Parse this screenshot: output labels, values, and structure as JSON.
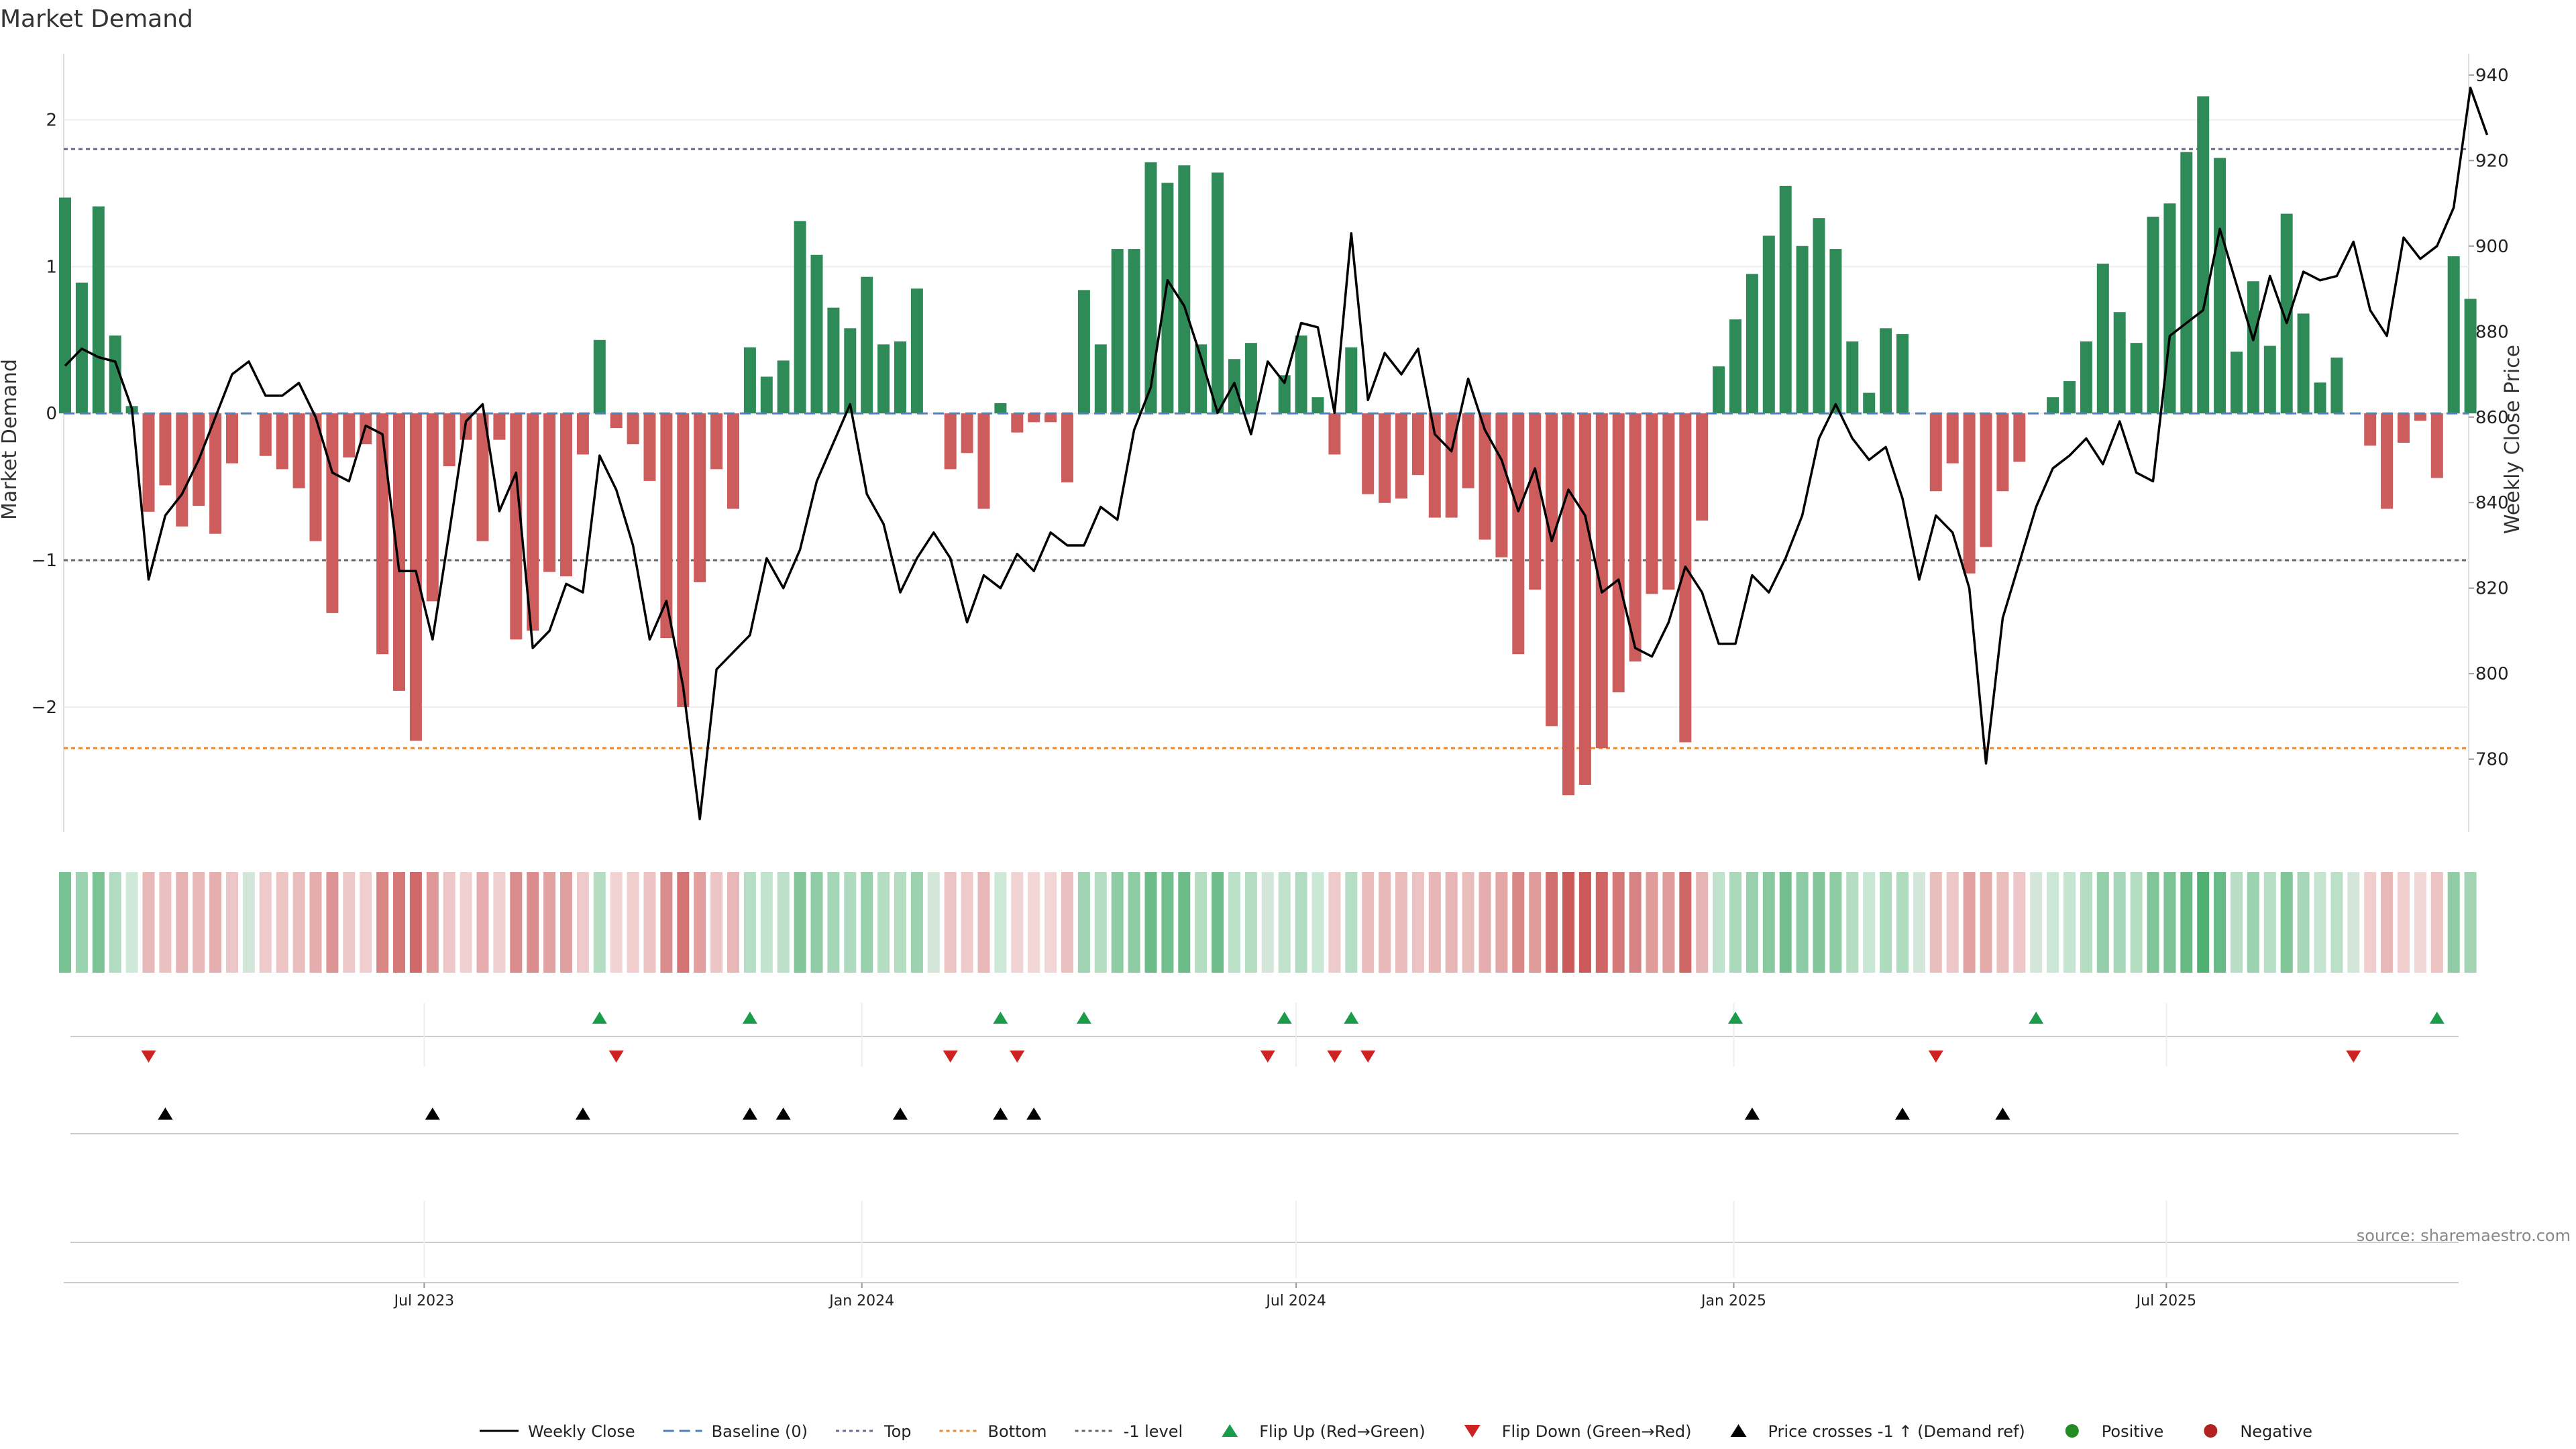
{
  "chart_data": {
    "type": "bar",
    "title": "Market Demand",
    "ylabel": "Market Demand",
    "y2label": "Weekly Close Price",
    "ylim": [
      -2.85,
      2.45
    ],
    "y2lim": [
      763,
      945
    ],
    "yticks": [
      "2",
      "1",
      "0",
      "−1",
      "−2"
    ],
    "y2ticks": [
      "940",
      "920",
      "900",
      "880",
      "860",
      "840",
      "820",
      "800",
      "780"
    ],
    "xtick_labels": [
      "Jul 2023",
      "Jan 2024",
      "Jul 2024",
      "Jan 2025",
      "Jul 2025"
    ],
    "xtick_weeks": [
      21.5,
      47.7,
      73.7,
      99.9,
      125.8
    ],
    "reference_lines": {
      "top": 1.8,
      "bottom": -2.28,
      "minus_one": -1.0,
      "baseline": 0
    },
    "colors": {
      "positive": "#2e8b57",
      "negative": "#cd5c5c",
      "price": "#000000",
      "top": "#6a6a8a",
      "bottom": "#e8892f",
      "baseline": "#4f81bd",
      "flip_up": "#1a9c4a",
      "flip_down": "#cc2222",
      "cross": "#000000"
    },
    "series": [
      {
        "name": "Market Demand",
        "values": [
          1.47,
          0.89,
          1.41,
          0.53,
          0.05,
          -0.67,
          -0.49,
          -0.77,
          -0.63,
          -0.82,
          -0.34,
          0,
          -0.29,
          -0.38,
          -0.51,
          -0.87,
          -1.36,
          -0.3,
          -0.21,
          -1.64,
          -1.89,
          -2.23,
          -1.28,
          -0.36,
          -0.18,
          -0.87,
          -0.18,
          -1.54,
          -1.48,
          -1.08,
          -1.11,
          -0.28,
          0.5,
          -0.1,
          -0.21,
          -0.46,
          -1.53,
          -2.0,
          -1.15,
          -0.38,
          -0.65,
          0.45,
          0.25,
          0.36,
          1.31,
          1.08,
          0.72,
          0.58,
          0.93,
          0.47,
          0.49,
          0.85,
          0,
          -0.38,
          -0.27,
          -0.65,
          0.07,
          -0.13,
          -0.06,
          -0.06,
          -0.47,
          0.84,
          0.47,
          1.12,
          1.12,
          1.71,
          1.57,
          1.69,
          0.47,
          1.64,
          0.37,
          0.48,
          0,
          0.26,
          0.53,
          0.11,
          -0.28,
          0.45,
          -0.55,
          -0.61,
          -0.58,
          -0.42,
          -0.71,
          -0.71,
          -0.51,
          -0.86,
          -0.98,
          -1.64,
          -1.2,
          -2.13,
          -2.6,
          -2.53,
          -2.28,
          -1.9,
          -1.69,
          -1.23,
          -1.2,
          -2.24,
          -0.73,
          0.32,
          0.64,
          0.95,
          1.21,
          1.55,
          1.14,
          1.33,
          1.12,
          0.49,
          0.14,
          0.58,
          0.54,
          0,
          -0.53,
          -0.34,
          -1.09,
          -0.91,
          -0.53,
          -0.33,
          0,
          0.11,
          0.22,
          0.49,
          1.02,
          0.69,
          0.48,
          1.34,
          1.43,
          1.78,
          2.16,
          1.74,
          0.42,
          0.9,
          0.46,
          1.36,
          0.68,
          0.21,
          0.38,
          0,
          -0.22,
          -0.65,
          -0.2,
          -0.05,
          -0.44,
          1.07,
          0.78
        ]
      },
      {
        "name": "Weekly Close",
        "values": [
          872,
          876,
          874,
          873,
          862,
          822,
          837,
          842,
          850,
          860,
          870,
          873,
          865,
          865,
          868,
          860,
          847,
          845,
          858,
          856,
          824,
          824,
          808,
          833,
          859,
          863,
          838,
          847,
          806,
          810,
          821,
          819,
          851,
          843,
          830,
          808,
          817,
          797,
          766,
          801,
          805,
          809,
          827,
          820,
          829,
          845,
          854,
          863,
          842,
          835,
          819,
          827,
          833,
          827,
          812,
          823,
          820,
          828,
          824,
          833,
          830,
          830,
          839,
          836,
          857,
          867,
          892,
          886,
          874,
          861,
          868,
          856,
          873,
          868,
          882,
          881,
          861,
          903,
          864,
          875,
          870,
          876,
          856,
          852,
          869,
          857,
          850,
          838,
          848,
          831,
          843,
          837,
          819,
          822,
          806,
          804,
          812,
          825,
          819,
          807,
          807,
          823,
          819,
          827,
          837,
          855,
          863,
          855,
          850,
          853,
          841,
          822,
          837,
          833,
          820,
          779,
          813,
          826,
          839,
          848,
          851,
          855,
          849,
          859,
          847,
          845,
          879,
          882,
          885,
          904,
          891,
          878,
          893,
          882,
          894,
          892,
          893,
          901,
          885,
          879,
          902,
          897,
          900,
          909,
          937,
          926
        ]
      }
    ],
    "flip_up_weeks": [
      32,
      41,
      56,
      61,
      73,
      77,
      100,
      118,
      142
    ],
    "flip_down_weeks": [
      5,
      33,
      53,
      57,
      72,
      76,
      78,
      112,
      137
    ],
    "cross_up_weeks": [
      6,
      22,
      31,
      41,
      43,
      50,
      56,
      58,
      101,
      110,
      116
    ],
    "legend": {
      "placement": "bottom-center",
      "items": [
        "Weekly Close",
        "Baseline (0)",
        "Top",
        "Bottom",
        "-1 level",
        "Flip Up (Red→Green)",
        "Flip Down (Green→Red)",
        "Price crosses -1 ↑ (Demand ref)",
        "Positive",
        "Negative"
      ]
    }
  },
  "source_text": "source: sharemaestro.com"
}
